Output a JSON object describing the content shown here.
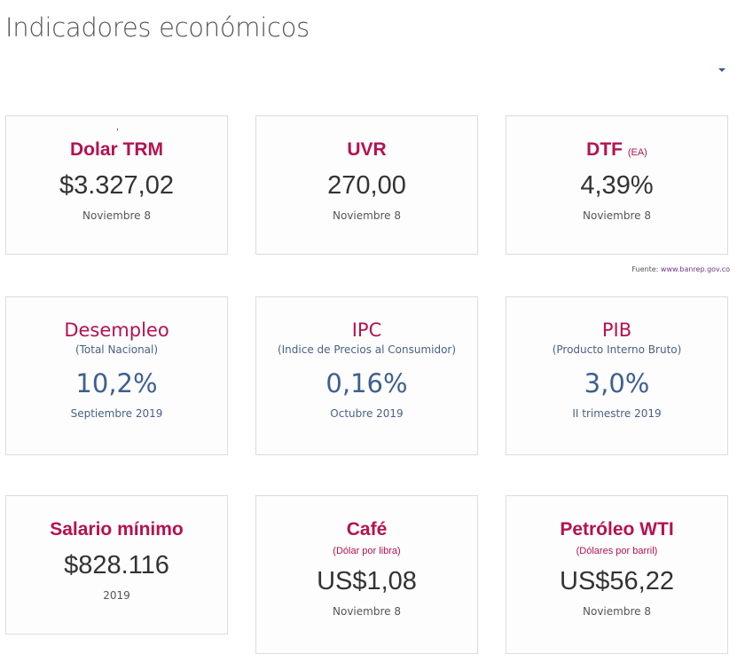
{
  "page": {
    "title": "Indicadores económicos"
  },
  "source": {
    "label": "Fuente:",
    "link": "www.banrep.gov.co"
  },
  "cards": [
    {
      "name": "Dolar TRM",
      "value": "$3.327,02",
      "date": "Noviembre 8"
    },
    {
      "name": "UVR",
      "value": "270,00",
      "date": "Noviembre 8"
    },
    {
      "name": "DTF",
      "unit": "(EA)",
      "value": "4,39%",
      "date": "Noviembre 8"
    },
    {
      "name": "Desempleo",
      "subtitle": "(Total Nacional)",
      "value": "10,2%",
      "date": "Septiembre 2019"
    },
    {
      "name": "IPC",
      "subtitle": "(Indice de Precios al Consumidor)",
      "value": "0,16%",
      "date": "Octubre 2019"
    },
    {
      "name": "PIB",
      "subtitle": "(Producto Interno Bruto)",
      "value": "3,0%",
      "date": "II trimestre 2019"
    },
    {
      "name": "Salario mínimo",
      "value": "$828.116",
      "date": "2019"
    },
    {
      "name": "Café",
      "subtitle": "(Dólar por libra)",
      "value": "US$1,08",
      "date": "Noviembre 8"
    },
    {
      "name": "Petróleo WTI",
      "subtitle": "(Dólares por barril)",
      "value": "US$56,22",
      "date": "Noviembre 8"
    }
  ]
}
